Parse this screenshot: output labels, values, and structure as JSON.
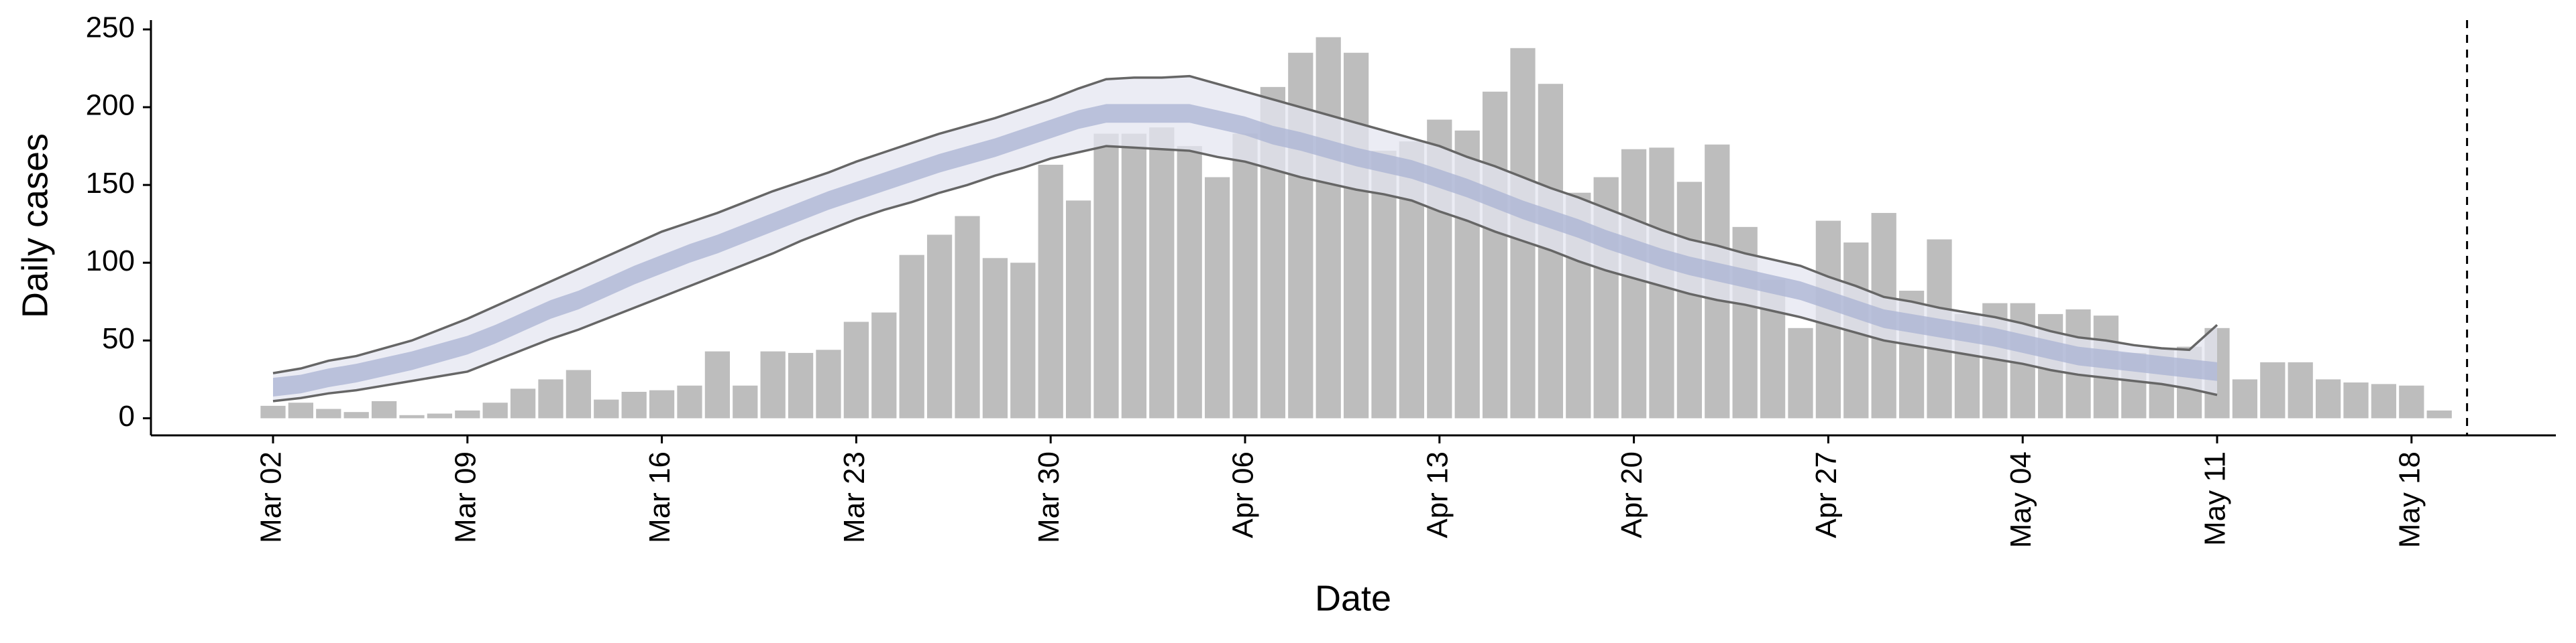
{
  "chart_data": {
    "type": "bar",
    "x_label": "Date",
    "y_label": "Daily cases",
    "categories": [
      "Mar 02",
      null,
      null,
      null,
      null,
      null,
      null,
      "Mar 09",
      null,
      null,
      null,
      null,
      null,
      null,
      "Mar 16",
      null,
      null,
      null,
      null,
      null,
      null,
      "Mar 23",
      null,
      null,
      null,
      null,
      null,
      null,
      "Mar 30",
      null,
      null,
      null,
      null,
      null,
      null,
      "Apr 06",
      null,
      null,
      null,
      null,
      null,
      null,
      "Apr 13",
      null,
      null,
      null,
      null,
      null,
      null,
      "Apr 20",
      null,
      null,
      null,
      null,
      null,
      null,
      "Apr 27",
      null,
      null,
      null,
      null,
      null,
      null,
      "May 04",
      null,
      null,
      null,
      null,
      null,
      null,
      "May 11",
      null,
      null,
      null,
      null,
      null,
      null,
      "May 18",
      null
    ],
    "values": [
      8,
      10,
      6,
      4,
      11,
      2,
      3,
      5,
      10,
      19,
      25,
      31,
      12,
      17,
      18,
      21,
      43,
      21,
      43,
      42,
      44,
      62,
      68,
      105,
      118,
      130,
      103,
      100,
      163,
      140,
      183,
      183,
      187,
      175,
      155,
      183,
      213,
      235,
      245,
      235,
      172,
      178,
      192,
      185,
      210,
      238,
      215,
      145,
      155,
      173,
      174,
      152,
      176,
      123,
      89,
      58,
      127,
      113,
      132,
      82,
      115,
      67,
      74,
      74,
      67,
      70,
      66,
      42,
      45,
      46,
      58,
      25,
      36,
      36,
      25,
      23,
      22,
      21,
      5
    ],
    "color": "#bdbdbd",
    "ylim": [
      -11,
      256
    ],
    "yticks": [
      0,
      50,
      100,
      150,
      200,
      250
    ],
    "bands": [
      {
        "color": "#e4e6f0",
        "edge_color": "#666666",
        "lower": [
          11,
          13,
          16,
          18,
          21,
          24,
          27,
          30,
          37,
          44,
          51,
          57,
          64,
          71,
          78,
          85,
          92,
          99,
          106,
          114,
          121,
          128,
          134,
          139,
          145,
          150,
          156,
          161,
          167,
          171,
          175,
          174,
          173,
          172,
          168,
          165,
          160,
          155,
          151,
          147,
          144,
          140,
          133,
          127,
          120,
          114,
          108,
          101,
          95,
          90,
          85,
          80,
          76,
          73,
          69,
          65,
          60,
          55,
          50,
          47,
          44,
          41,
          38,
          35,
          31,
          28,
          26,
          24,
          22,
          19,
          15,
          null,
          null,
          null,
          null,
          null,
          null,
          null,
          null
        ],
        "upper": [
          29,
          32,
          37,
          40,
          45,
          50,
          57,
          64,
          72,
          80,
          88,
          96,
          104,
          112,
          120,
          126,
          132,
          139,
          146,
          152,
          158,
          165,
          171,
          177,
          183,
          188,
          193,
          199,
          205,
          212,
          218,
          219,
          219,
          220,
          215,
          210,
          205,
          200,
          195,
          190,
          185,
          180,
          175,
          168,
          162,
          155,
          148,
          142,
          135,
          128,
          121,
          115,
          111,
          106,
          102,
          98,
          91,
          85,
          78,
          75,
          71,
          68,
          65,
          61,
          56,
          52,
          50,
          47,
          45,
          44,
          60,
          null,
          null,
          null,
          null,
          null,
          null,
          null,
          null
        ]
      },
      {
        "color": "#a9b3d3",
        "lower": [
          14,
          16,
          20,
          23,
          27,
          31,
          36,
          41,
          48,
          56,
          64,
          70,
          78,
          86,
          93,
          100,
          106,
          113,
          120,
          127,
          134,
          140,
          146,
          152,
          158,
          163,
          168,
          174,
          180,
          186,
          190,
          190,
          190,
          190,
          186,
          182,
          176,
          172,
          167,
          162,
          158,
          154,
          148,
          142,
          135,
          128,
          122,
          116,
          109,
          103,
          97,
          92,
          88,
          84,
          80,
          76,
          70,
          64,
          58,
          55,
          52,
          49,
          46,
          42,
          38,
          34,
          32,
          30,
          28,
          26,
          24,
          null,
          null,
          null,
          null,
          null,
          null,
          null,
          null
        ],
        "upper": [
          26,
          28,
          32,
          35,
          39,
          43,
          48,
          53,
          60,
          68,
          76,
          82,
          90,
          98,
          105,
          112,
          118,
          125,
          132,
          139,
          146,
          152,
          158,
          164,
          170,
          175,
          180,
          186,
          192,
          198,
          202,
          202,
          202,
          202,
          198,
          194,
          188,
          184,
          179,
          174,
          170,
          166,
          160,
          154,
          147,
          140,
          134,
          128,
          121,
          115,
          109,
          104,
          100,
          96,
          92,
          88,
          82,
          76,
          70,
          67,
          64,
          61,
          58,
          54,
          50,
          46,
          44,
          42,
          40,
          38,
          36,
          null,
          null,
          null,
          null,
          null,
          null,
          null,
          null
        ]
      }
    ]
  }
}
